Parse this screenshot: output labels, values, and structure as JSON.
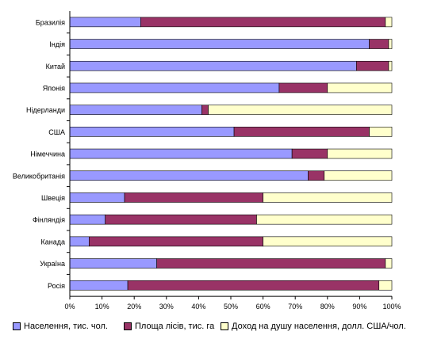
{
  "chart_data": {
    "type": "bar",
    "orientation": "horizontal",
    "stacking": "percent",
    "categories": [
      "Бразилія",
      "Індія",
      "Китай",
      "Японія",
      "Нідерланди",
      "США",
      "Німеччина",
      "Великобританія",
      "Швеція",
      "Фінляндія",
      "Канада",
      "Україна",
      "Росія"
    ],
    "series": [
      {
        "name": "Населення, тис. чол.",
        "color": "#9999ff",
        "values": [
          22,
          93,
          89,
          65,
          41,
          51,
          69,
          74,
          17,
          11,
          6,
          27,
          18
        ]
      },
      {
        "name": "Площа лісів, тис. га",
        "color": "#993366",
        "values": [
          76,
          6,
          10,
          15,
          2,
          42,
          11,
          5,
          43,
          47,
          54,
          71,
          78
        ]
      },
      {
        "name": "Доход на душу населення, долл. США/чол.",
        "color": "#ffffcc",
        "values": [
          2,
          1,
          1,
          20,
          57,
          7,
          20,
          21,
          40,
          42,
          40,
          2,
          4
        ]
      }
    ],
    "xlim": [
      0,
      100
    ],
    "x_ticks": [
      "0%",
      "10%",
      "20%",
      "30%",
      "40%",
      "50%",
      "60%",
      "70%",
      "80%",
      "90%",
      "100%"
    ],
    "legend_position": "bottom",
    "grid": false
  }
}
